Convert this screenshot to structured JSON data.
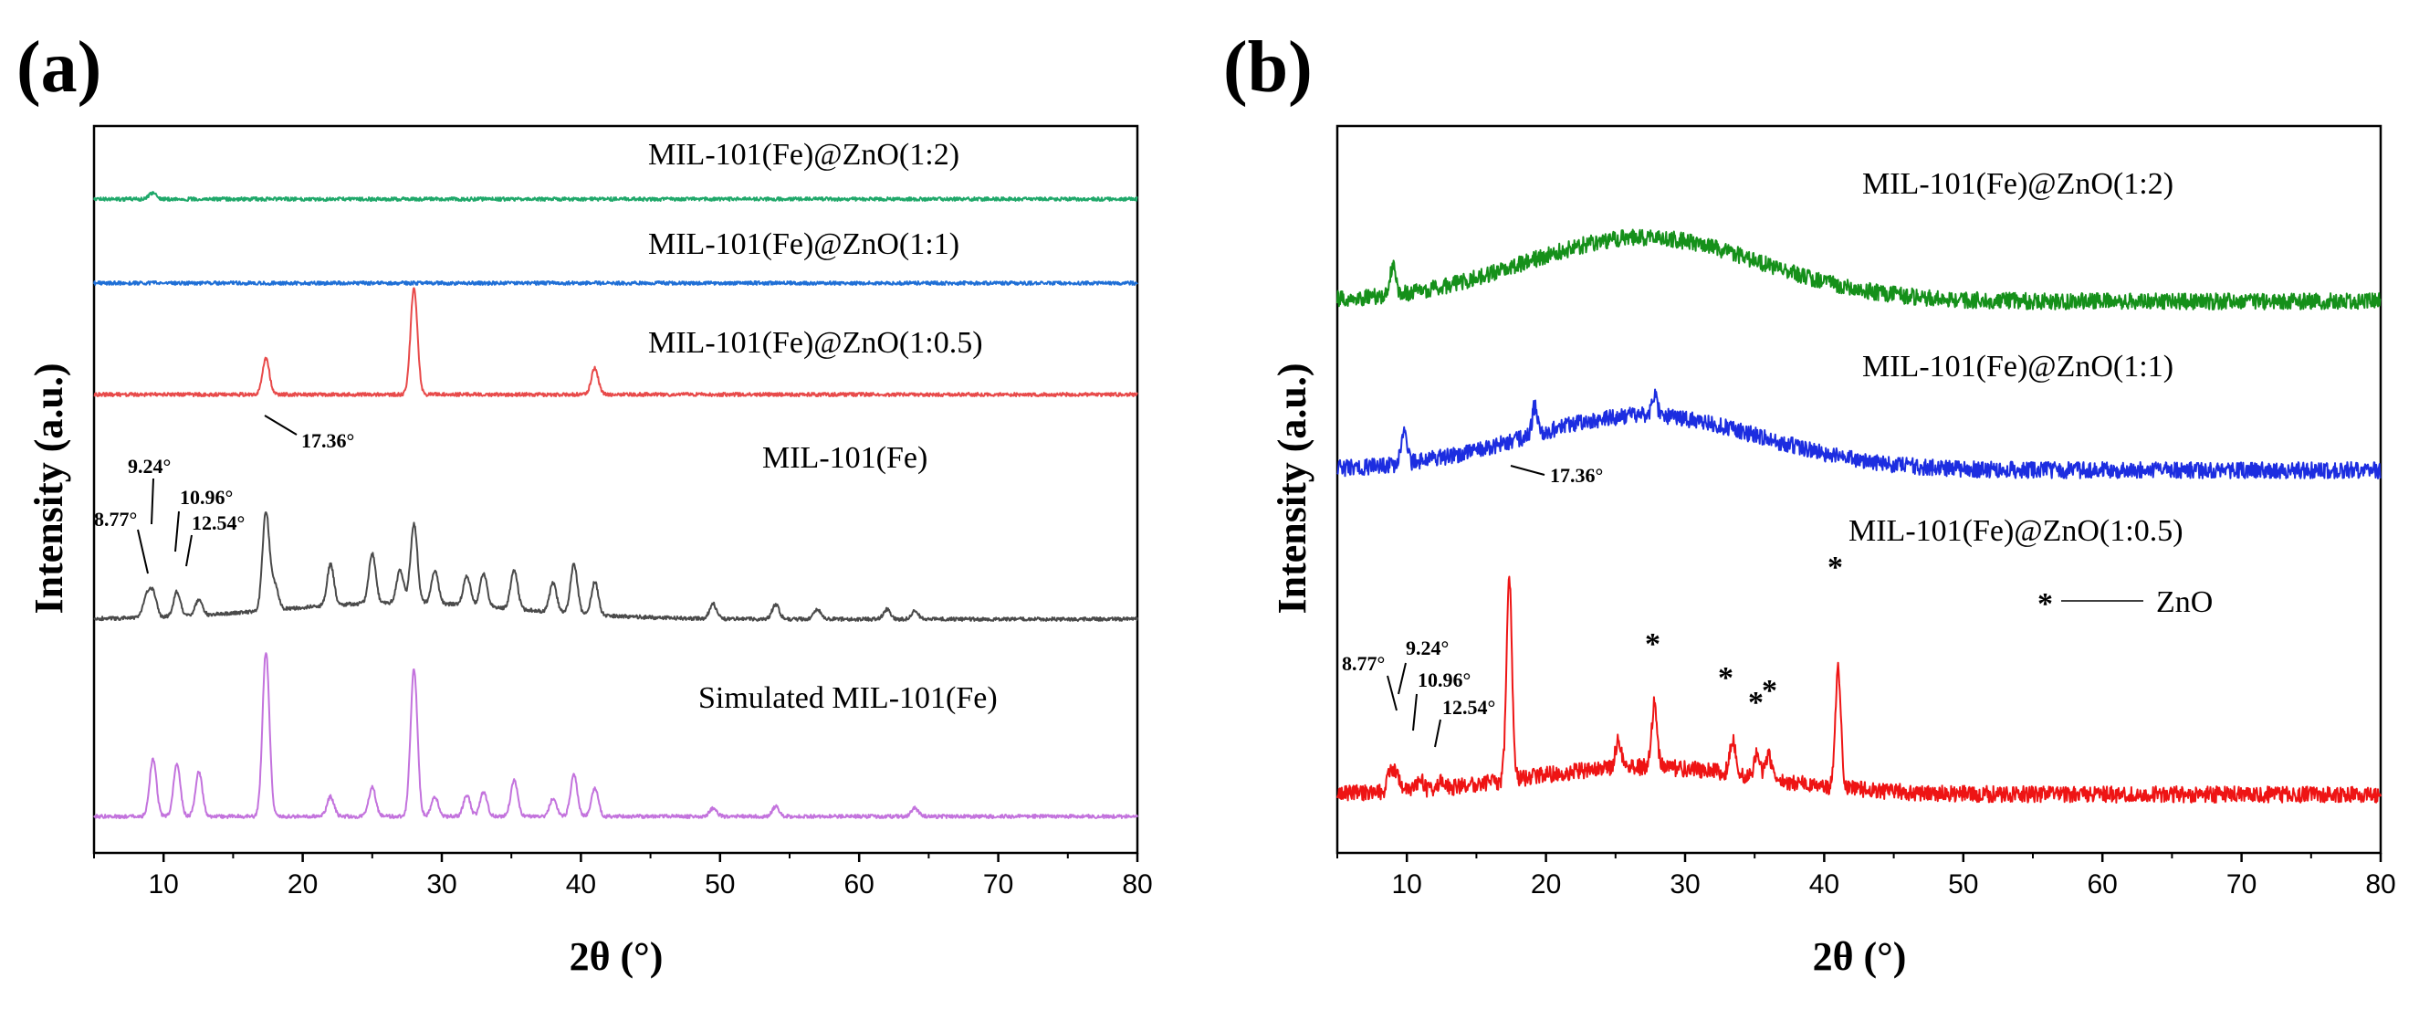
{
  "chart_data": [
    {
      "type": "line",
      "panel_label": "(a)",
      "xlabel": "2θ (°)",
      "ylabel": "Intensity (a.u.)",
      "xlim": [
        5,
        80
      ],
      "xticks": [
        10,
        20,
        30,
        40,
        50,
        60,
        70,
        80
      ],
      "yticks": "none",
      "series": [
        {
          "name": "MIL-101(Fe)@ZnO(1:2)",
          "color": "#1fa86a",
          "label": "MIL-101(Fe)@ZnO(1:2)",
          "peaks": [
            [
              9.24,
              0.4
            ]
          ]
        },
        {
          "name": "MIL-101(Fe)@ZnO(1:1)",
          "color": "#1f6fd6",
          "label": "MIL-101(Fe)@ZnO(1:1)",
          "peaks": []
        },
        {
          "name": "MIL-101(Fe)@ZnO(1:0.5)",
          "color": "#e84a4a",
          "label": "MIL-101(Fe)@ZnO(1:0.5)",
          "peaks": [
            [
              17.36,
              2.2
            ],
            [
              28.0,
              6.5
            ],
            [
              41.0,
              1.6
            ]
          ]
        },
        {
          "name": "MIL-101(Fe)",
          "color": "#4a4a4a",
          "label": "MIL-101(Fe)",
          "peaks": [
            [
              8.77,
              1.2
            ],
            [
              9.24,
              1.5
            ],
            [
              10.96,
              1.5
            ],
            [
              12.54,
              1.0
            ],
            [
              17.36,
              6.0
            ],
            [
              18.0,
              1.5
            ],
            [
              22.0,
              2.5
            ],
            [
              25.0,
              3.0
            ],
            [
              27.0,
              2.0
            ],
            [
              28.0,
              4.8
            ],
            [
              29.5,
              2.0
            ],
            [
              31.8,
              1.8
            ],
            [
              33.0,
              2.0
            ],
            [
              35.2,
              2.4
            ],
            [
              38.0,
              1.8
            ],
            [
              39.5,
              3.0
            ],
            [
              41.0,
              2.0
            ],
            [
              49.5,
              0.9
            ],
            [
              54.0,
              0.9
            ],
            [
              57.0,
              0.6
            ],
            [
              62.0,
              0.6
            ],
            [
              64.0,
              0.5
            ]
          ]
        },
        {
          "name": "Simulated MIL-101(Fe)",
          "color": "#c373dd",
          "label": "Simulated MIL-101(Fe)",
          "peaks": [
            [
              9.24,
              3.5
            ],
            [
              10.96,
              3.2
            ],
            [
              12.54,
              2.7
            ],
            [
              17.36,
              10.0
            ],
            [
              22.0,
              1.2
            ],
            [
              25.0,
              1.8
            ],
            [
              28.0,
              9.0
            ],
            [
              29.5,
              1.2
            ],
            [
              31.8,
              1.3
            ],
            [
              33.0,
              1.5
            ],
            [
              35.2,
              2.2
            ],
            [
              38.0,
              1.1
            ],
            [
              39.5,
              2.5
            ],
            [
              41.0,
              1.7
            ],
            [
              49.5,
              0.5
            ],
            [
              54.0,
              0.6
            ],
            [
              64.0,
              0.5
            ]
          ]
        }
      ],
      "annotations": [
        "8.77°",
        "9.24°",
        "10.96°",
        "12.54°",
        "17.36°"
      ]
    },
    {
      "type": "line",
      "panel_label": "(b)",
      "xlabel": "2θ (°)",
      "ylabel": "Intensity (a.u.)",
      "xlim": [
        5,
        80
      ],
      "xticks": [
        10,
        20,
        30,
        40,
        50,
        60,
        70,
        80
      ],
      "yticks": "none",
      "series": [
        {
          "name": "MIL-101(Fe)@ZnO(1:2)",
          "color": "#15901a",
          "label": "MIL-101(Fe)@ZnO(1:2)",
          "peaks": [
            [
              9.0,
              1.5
            ]
          ]
        },
        {
          "name": "MIL-101(Fe)@ZnO(1:1)",
          "color": "#1c2de0",
          "label": "MIL-101(Fe)@ZnO(1:1)",
          "peaks": [
            [
              9.8,
              1.5
            ],
            [
              19.2,
              1.4
            ],
            [
              27.8,
              1.0
            ]
          ]
        },
        {
          "name": "MIL-101(Fe)@ZnO(1:0.5)",
          "color": "#ee1414",
          "label": "MIL-101(Fe)@ZnO(1:0.5)",
          "peaks": [
            [
              8.77,
              1.0
            ],
            [
              9.24,
              0.9
            ],
            [
              10.96,
              0.6
            ],
            [
              12.54,
              0.5
            ],
            [
              17.36,
              10.0
            ],
            [
              25.2,
              1.4
            ],
            [
              27.8,
              3.2
            ],
            [
              33.4,
              1.8
            ],
            [
              35.2,
              1.2
            ],
            [
              36.0,
              1.2
            ],
            [
              41.0,
              6.0
            ]
          ]
        }
      ],
      "annotations": [
        "8.77°",
        "9.24°",
        "10.96°",
        "12.54°",
        "17.36°"
      ],
      "zno_markers": [
        "*",
        "*",
        "*",
        "*",
        "*"
      ],
      "legend": {
        "symbol": "*",
        "label": "ZnO"
      }
    }
  ]
}
